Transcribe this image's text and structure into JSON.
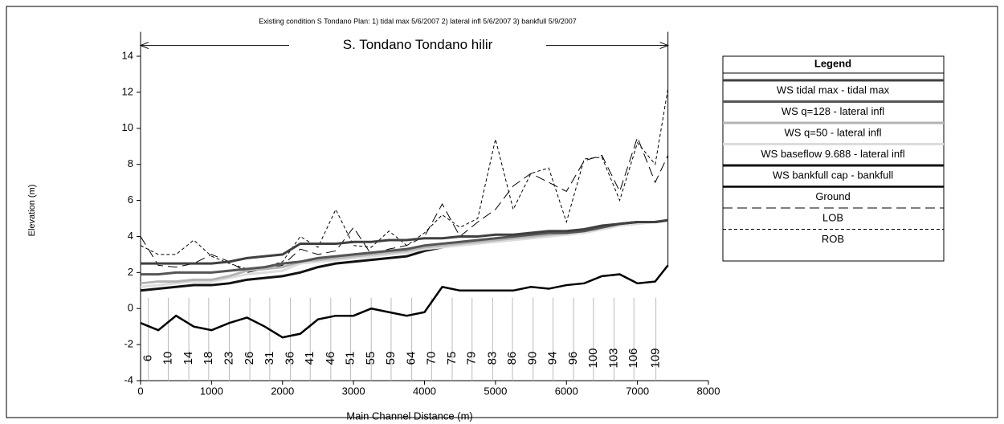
{
  "chart_data": {
    "type": "line",
    "title": "Existing condition S Tondano    Plan:  1) tidal max  5/6/2007    2) lateral infl  5/6/2007    3) bankfull  5/9/2007",
    "reach_label": "S. Tondano Tondano hilir",
    "reach_extent": [
      0,
      7430
    ],
    "x_label": "Main Channel Distance (m)",
    "y_label": "Elevation (m)",
    "legend_title": "Legend",
    "x": [
      0,
      250,
      500,
      750,
      1000,
      1250,
      1500,
      1750,
      2000,
      2250,
      2500,
      2750,
      3000,
      3250,
      3500,
      3750,
      4000,
      4250,
      4500,
      4750,
      5000,
      5250,
      5500,
      5750,
      6000,
      6250,
      6500,
      6750,
      7000,
      7250,
      7430
    ],
    "series": [
      {
        "name": "WS  tidal max - tidal max",
        "color": "#404040",
        "width": 3,
        "dash": "none",
        "values": [
          2.5,
          2.5,
          2.5,
          2.5,
          2.5,
          2.6,
          2.8,
          2.9,
          3.0,
          3.6,
          3.6,
          3.6,
          3.7,
          3.7,
          3.8,
          3.8,
          3.9,
          3.9,
          4.0,
          4.0,
          4.1,
          4.1,
          4.2,
          4.3,
          4.3,
          4.4,
          4.6,
          4.7,
          4.8,
          4.8,
          4.9
        ]
      },
      {
        "name": "WS  q=128 - lateral infl",
        "color": "#555555",
        "width": 3,
        "dash": "none",
        "values": [
          1.9,
          1.9,
          2.0,
          2.0,
          2.0,
          2.1,
          2.2,
          2.3,
          2.5,
          2.6,
          2.8,
          2.9,
          3.0,
          3.1,
          3.2,
          3.3,
          3.5,
          3.6,
          3.7,
          3.8,
          3.9,
          4.0,
          4.1,
          4.2,
          4.2,
          4.3,
          4.5,
          4.7,
          4.8,
          4.8,
          4.9
        ]
      },
      {
        "name": "WS  q=50 - lateral infl",
        "color": "#b4b4b4",
        "width": 3,
        "dash": "none",
        "values": [
          1.4,
          1.5,
          1.5,
          1.6,
          1.6,
          1.8,
          2.1,
          2.2,
          2.3,
          2.6,
          2.7,
          2.8,
          2.9,
          3.0,
          3.1,
          3.2,
          3.4,
          3.5,
          3.6,
          3.7,
          3.8,
          3.9,
          4.0,
          4.1,
          4.2,
          4.3,
          4.5,
          4.7,
          4.8,
          4.8,
          4.9
        ]
      },
      {
        "name": "WS  baseflow 9.688 - lateral infl",
        "color": "#dcdcdc",
        "width": 3,
        "dash": "none",
        "values": [
          1.2,
          1.3,
          1.4,
          1.5,
          1.5,
          1.7,
          1.9,
          2.0,
          2.1,
          2.5,
          2.6,
          2.7,
          2.8,
          2.9,
          3.0,
          3.1,
          3.3,
          3.4,
          3.5,
          3.6,
          3.7,
          3.8,
          3.9,
          4.0,
          4.1,
          4.2,
          4.4,
          4.6,
          4.7,
          4.8,
          4.9
        ]
      },
      {
        "name": "WS  bankfull cap - bankfull",
        "color": "#111111",
        "width": 3,
        "dash": "none",
        "values": [
          1.0,
          1.1,
          1.2,
          1.3,
          1.3,
          1.4,
          1.6,
          1.7,
          1.8,
          2.0,
          2.3,
          2.5,
          2.6,
          2.7,
          2.8,
          2.9,
          3.2,
          3.4,
          3.6,
          3.7,
          3.8,
          3.9,
          4.0,
          4.1,
          4.2,
          4.3,
          4.5,
          4.7,
          4.8,
          4.8,
          4.9
        ]
      },
      {
        "name": "Ground",
        "color": "#000000",
        "width": 2.5,
        "dash": "none",
        "values": [
          -0.8,
          -1.2,
          -0.4,
          -1.0,
          -1.2,
          -0.8,
          -0.5,
          -1.0,
          -1.6,
          -1.4,
          -0.6,
          -0.4,
          -0.4,
          0.0,
          -0.2,
          -0.4,
          -0.2,
          1.2,
          1.0,
          1.0,
          1.0,
          1.0,
          1.2,
          1.1,
          1.3,
          1.4,
          1.8,
          1.9,
          1.4,
          1.5,
          2.4
        ]
      },
      {
        "name": "LOB",
        "color": "#000000",
        "width": 1,
        "dash": "12,6",
        "values": [
          4.0,
          2.4,
          2.3,
          2.5,
          3.0,
          2.6,
          2.0,
          2.2,
          2.4,
          3.3,
          3.0,
          3.2,
          4.5,
          3.0,
          3.3,
          3.5,
          4.0,
          5.8,
          4.0,
          4.8,
          5.5,
          6.8,
          7.5,
          7.0,
          6.5,
          8.2,
          8.5,
          6.5,
          9.5,
          7.0,
          8.5
        ]
      },
      {
        "name": "ROB",
        "color": "#000000",
        "width": 1,
        "dash": "4,3",
        "values": [
          3.5,
          3.0,
          3.0,
          3.8,
          2.9,
          2.5,
          2.2,
          2.3,
          2.6,
          4.0,
          3.4,
          5.5,
          3.5,
          3.4,
          4.3,
          3.5,
          4.2,
          5.2,
          4.5,
          5.0,
          9.4,
          5.5,
          7.5,
          7.8,
          4.8,
          8.3,
          8.4,
          6.0,
          9.2,
          8.0,
          12.2
        ]
      }
    ],
    "stations": {
      "labels": [
        "6",
        "10",
        "14",
        "18",
        "23",
        "26",
        "31",
        "36",
        "41",
        "46",
        "51",
        "55",
        "59",
        "64",
        "70",
        "75",
        "79",
        "83",
        "86",
        "90",
        "94",
        "96",
        "100",
        "103",
        "106",
        "109"
      ],
      "x": [
        110,
        390,
        680,
        960,
        1250,
        1540,
        1820,
        2110,
        2390,
        2680,
        2960,
        3250,
        3530,
        3820,
        4100,
        4390,
        4670,
        4960,
        5240,
        5530,
        5810,
        6100,
        6380,
        6670,
        6950,
        7260
      ]
    },
    "xlim": [
      0,
      8000
    ],
    "xticks": [
      0,
      1000,
      2000,
      3000,
      4000,
      5000,
      6000,
      7000,
      8000
    ],
    "ylim": [
      -4,
      15
    ],
    "yticks": [
      -4,
      -2,
      0,
      2,
      4,
      6,
      8,
      10,
      12,
      14
    ]
  }
}
